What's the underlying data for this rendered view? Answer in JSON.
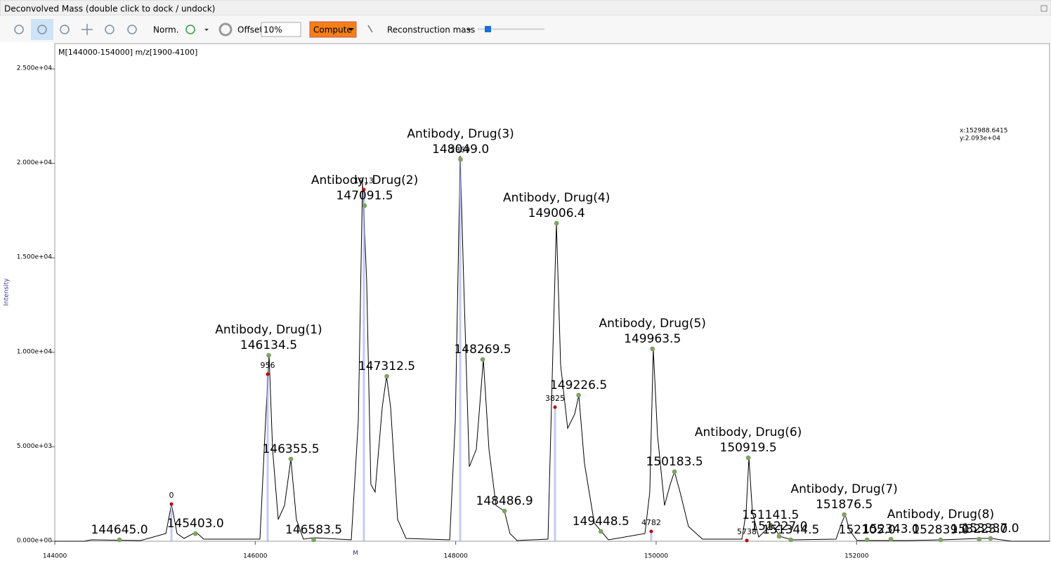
{
  "window": {
    "title": "Deconvolved Mass (double click to dock / undock)"
  },
  "toolbar": {
    "norm": "Norm.",
    "offset_label": "Offset:",
    "offset_value": "10%",
    "compute": "Compute",
    "mode": "Reconstruction mass"
  },
  "chart_data": {
    "type": "line",
    "title": "M[144000-154000] m/z[1900-4100]",
    "y_label": "Intensity",
    "x_marker_label": "M",
    "cursor": [
      "x:152988.6415",
      "y:2.093e+04"
    ],
    "xlim": [
      144000,
      153926
    ],
    "ylim": [
      0,
      26340
    ],
    "xticks": [
      144000,
      146000,
      148000,
      150000,
      152000
    ],
    "yticks": [
      {
        "value": 0,
        "label": "0.000e+00"
      },
      {
        "value": 5000,
        "label": "5.000e+03"
      },
      {
        "value": 10000,
        "label": "1.000e+04"
      },
      {
        "value": 15000,
        "label": "1.500e+04"
      },
      {
        "value": 20000,
        "label": "2.000e+04"
      },
      {
        "value": 25000,
        "label": "2.500e+04"
      }
    ],
    "series": [
      {
        "color": "#000000",
        "x": [
          144000,
          144294,
          144365,
          144855,
          145108,
          145164,
          145220,
          145290,
          145409,
          145486,
          146047,
          146103,
          146138,
          146173,
          146229,
          146292,
          146355,
          146411,
          146481,
          146587,
          146958,
          147028,
          147070,
          147112,
          147154,
          147196,
          147267,
          147310,
          147351,
          147421,
          147505,
          147940,
          147996,
          148045,
          148080,
          148136,
          148206,
          148276,
          148332,
          148402,
          148486,
          148542,
          148612,
          148921,
          148970,
          149005,
          149047,
          149117,
          149187,
          149229,
          149285,
          149383,
          149454,
          149524,
          149888,
          149937,
          149972,
          150014,
          150084,
          150141,
          150183,
          150239,
          150323,
          150463,
          150856,
          150898,
          150926,
          150961,
          151024,
          151129,
          151164,
          151234,
          151353,
          151795,
          151851,
          151886,
          151928,
          152005,
          152496,
          152846,
          153232,
          153344,
          153547,
          153926
        ],
        "values": [
          0,
          0,
          74,
          37,
          409,
          1969,
          409,
          149,
          483,
          111,
          111,
          6353,
          9844,
          4867,
          1152,
          1895,
          4347,
          1152,
          111,
          186,
          74,
          6353,
          18984,
          13783,
          3010,
          2601,
          7096,
          8730,
          7096,
          1152,
          149,
          74,
          6353,
          20395,
          13783,
          3938,
          4867,
          9622,
          4867,
          1895,
          1597,
          409,
          37,
          111,
          10068,
          16829,
          9325,
          5982,
          6725,
          7727,
          4124,
          966,
          520,
          74,
          409,
          2601,
          10179,
          5610,
          1895,
          3010,
          3678,
          2601,
          780,
          111,
          111,
          1523,
          4421,
          1523,
          223,
          780,
          854,
          260,
          74,
          111,
          966,
          1412,
          594,
          37,
          37,
          74,
          149,
          149,
          0,
          0
        ]
      }
    ],
    "peaks": {
      "color": "#5cb85c",
      "x": [
        144645.0,
        145403.0,
        146134.5,
        146355.5,
        146583.5,
        147091.5,
        147312.5,
        148049.0,
        148269.5,
        148486.9,
        149006.4,
        149226.5,
        149448.5,
        149963.5,
        150183.5,
        150919.5,
        151141.5,
        151227.0,
        151344.5,
        151876.5,
        152105.0,
        152343.0,
        152839.0,
        153223.0,
        153337.0
      ],
      "values": [
        75,
        400,
        9840,
        4350,
        75,
        17760,
        8730,
        20210,
        9620,
        1600,
        16830,
        7730,
        520,
        10180,
        3680,
        4420,
        850,
        260,
        75,
        1410,
        75,
        110,
        75,
        110,
        150
      ],
      "x_labels": [
        "144645.0",
        "145403.0",
        "146134.5",
        "146355.5",
        "146583.5",
        "147091.5",
        "147312.5",
        "148049.0",
        "148269.5",
        "148486.9",
        "149006.4",
        "149226.5",
        "149448.5",
        "149963.5",
        "150183.5",
        "150919.5",
        "151141.5",
        "151227.0",
        "151344.5",
        "151876.5",
        "152105.0",
        "152343.0",
        "152839.0",
        "153223.0",
        "153337.0"
      ],
      "names": [
        null,
        null,
        "Antibody, Drug(1)",
        null,
        null,
        "Antibody, Drug(2)",
        null,
        "Antibody, Drug(3)",
        null,
        null,
        "Antibody, Drug(4)",
        null,
        null,
        "Antibody, Drug(5)",
        null,
        "Antibody, Drug(6)",
        null,
        null,
        null,
        "Antibody, Drug(7)",
        null,
        null,
        "Antibody, Drug(8)",
        null,
        null
      ]
    },
    "markers": {
      "color": "#c00000",
      "x": [
        145164,
        146124,
        147084,
        148045,
        148991,
        149951,
        150905
      ],
      "values": [
        1970,
        8840,
        18610,
        20245,
        7095,
        520,
        40
      ],
      "offsets": [
        0,
        956,
        1913,
        2869,
        3825,
        4782,
        5738
      ]
    }
  }
}
